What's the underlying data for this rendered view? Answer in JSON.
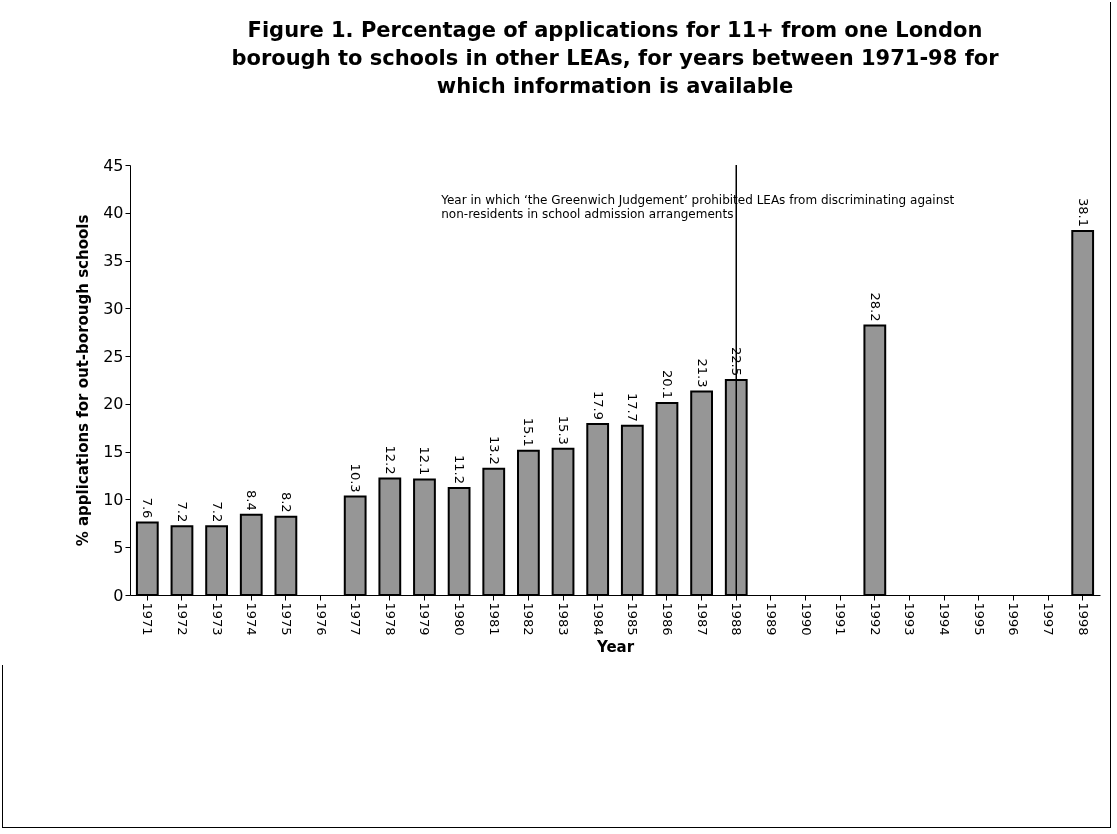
{
  "chart_data": {
    "type": "bar",
    "title": "Figure 1. Percentage of applications for 11+ from one London\nborough to schools in other LEAs, for years between 1971-98 for\nwhich information is available",
    "xlabel": "Year",
    "ylabel": "% applications for out-borough schools",
    "categories": [
      "1971",
      "1972",
      "1973",
      "1974",
      "1975",
      "1976",
      "1977",
      "1978",
      "1979",
      "1980",
      "1981",
      "1982",
      "1983",
      "1984",
      "1985",
      "1986",
      "1987",
      "1988",
      "1989",
      "1990",
      "1991",
      "1992",
      "1993",
      "1994",
      "1995",
      "1996",
      "1997",
      "1998"
    ],
    "values": [
      7.6,
      7.2,
      7.2,
      8.4,
      8.2,
      null,
      10.3,
      12.2,
      12.1,
      11.2,
      13.2,
      15.1,
      15.3,
      17.9,
      17.7,
      20.1,
      21.3,
      22.5,
      null,
      null,
      null,
      28.2,
      null,
      null,
      null,
      null,
      null,
      38.1
    ],
    "color": "#969696",
    "ylim": [
      0,
      45
    ],
    "yticks": [
      0,
      5,
      10,
      15,
      20,
      25,
      30,
      35,
      40,
      45
    ],
    "grid": false,
    "data_labels": true,
    "ref_lines": [
      {
        "axis": "x",
        "value": "1988",
        "label": "Year in which ‘the Greenwich Judgement’ prohibited LEAs from discriminating against\nnon-residents in school admission arrangements",
        "color": "#000000"
      }
    ]
  }
}
